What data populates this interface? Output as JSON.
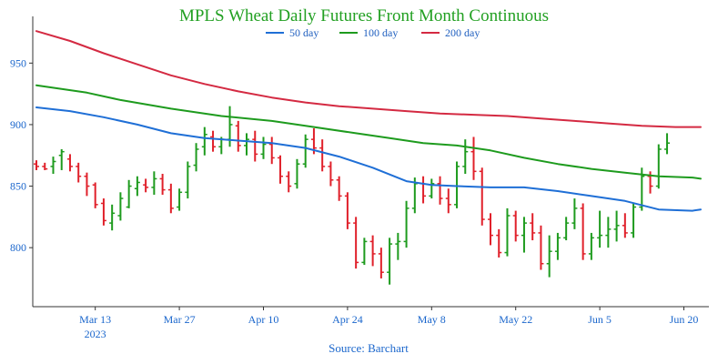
{
  "chart_data": {
    "type": "line",
    "title": "MPLS Wheat Daily Futures Front Month Continuous",
    "source": "Source: Barchart",
    "ylim": [
      755,
      985
    ],
    "y_ticks": [
      800,
      850,
      900,
      950
    ],
    "x_ticks": [
      {
        "label": "Mar 13",
        "year": "2023",
        "day": 7
      },
      {
        "label": "Mar 27",
        "day": 17
      },
      {
        "label": "Apr 10",
        "day": 27
      },
      {
        "label": "Apr 24",
        "day": 37
      },
      {
        "label": "May 8",
        "day": 47
      },
      {
        "label": "May 22",
        "day": 57
      },
      {
        "label": "Jun 5",
        "day": 67
      },
      {
        "label": "Jun 20",
        "day": 77
      }
    ],
    "legend": [
      {
        "name": "50 day",
        "color": "#1f6fd6"
      },
      {
        "name": "100 day",
        "color": "#1e9b1e"
      },
      {
        "name": "200 day",
        "color": "#d42a42"
      }
    ],
    "colors": {
      "up": "#1e9b1e",
      "down": "#e0202a",
      "axis": "#333333"
    },
    "series": [
      {
        "name": "50 day",
        "color": "#1f6fd6",
        "points": [
          [
            0,
            914
          ],
          [
            4,
            911
          ],
          [
            8,
            906
          ],
          [
            12,
            900
          ],
          [
            16,
            893
          ],
          [
            20,
            889
          ],
          [
            24,
            887
          ],
          [
            28,
            885
          ],
          [
            32,
            881
          ],
          [
            36,
            874
          ],
          [
            40,
            865
          ],
          [
            44,
            854
          ],
          [
            47,
            851
          ],
          [
            50,
            850
          ],
          [
            54,
            849
          ],
          [
            58,
            849
          ],
          [
            62,
            846
          ],
          [
            66,
            842
          ],
          [
            70,
            838
          ],
          [
            74,
            831
          ],
          [
            78,
            830
          ],
          [
            79,
            831
          ]
        ]
      },
      {
        "name": "100 day",
        "color": "#1e9b1e",
        "points": [
          [
            0,
            932
          ],
          [
            6,
            926
          ],
          [
            10,
            920
          ],
          [
            16,
            913
          ],
          [
            22,
            907
          ],
          [
            28,
            903
          ],
          [
            32,
            899
          ],
          [
            38,
            893
          ],
          [
            42,
            889
          ],
          [
            46,
            885
          ],
          [
            50,
            883
          ],
          [
            54,
            879
          ],
          [
            58,
            873
          ],
          [
            62,
            868
          ],
          [
            66,
            864
          ],
          [
            70,
            861
          ],
          [
            74,
            858
          ],
          [
            78,
            857
          ],
          [
            79,
            856
          ]
        ]
      },
      {
        "name": "200 day",
        "color": "#d42a42",
        "points": [
          [
            0,
            976
          ],
          [
            4,
            968
          ],
          [
            8,
            958
          ],
          [
            12,
            949
          ],
          [
            16,
            940
          ],
          [
            20,
            933
          ],
          [
            24,
            927
          ],
          [
            28,
            922
          ],
          [
            32,
            918
          ],
          [
            36,
            915
          ],
          [
            40,
            913
          ],
          [
            44,
            911
          ],
          [
            48,
            909
          ],
          [
            52,
            908
          ],
          [
            56,
            907
          ],
          [
            60,
            905
          ],
          [
            64,
            903
          ],
          [
            68,
            901
          ],
          [
            72,
            899
          ],
          [
            76,
            898
          ],
          [
            79,
            898
          ]
        ]
      }
    ],
    "ohlc": [
      [
        0,
        868,
        871,
        863,
        866
      ],
      [
        1,
        866,
        869,
        863,
        864
      ],
      [
        2,
        866,
        874,
        860,
        870
      ],
      [
        3,
        875,
        880,
        863,
        878
      ],
      [
        4,
        872,
        876,
        862,
        866
      ],
      [
        5,
        866,
        869,
        853,
        858
      ],
      [
        6,
        858,
        861,
        842,
        850
      ],
      [
        7,
        851,
        853,
        832,
        835
      ],
      [
        8,
        836,
        840,
        818,
        822
      ],
      [
        9,
        820,
        835,
        814,
        828
      ],
      [
        10,
        826,
        845,
        822,
        840
      ],
      [
        11,
        833,
        855,
        832,
        850
      ],
      [
        12,
        848,
        858,
        842,
        853
      ],
      [
        13,
        851,
        856,
        845,
        849
      ],
      [
        14,
        849,
        862,
        843,
        856
      ],
      [
        15,
        856,
        860,
        843,
        847
      ],
      [
        16,
        847,
        852,
        828,
        832
      ],
      [
        17,
        833,
        848,
        830,
        845
      ],
      [
        18,
        845,
        870,
        840,
        866
      ],
      [
        19,
        867,
        885,
        862,
        880
      ],
      [
        20,
        882,
        898,
        875,
        892
      ],
      [
        21,
        890,
        895,
        878,
        882
      ],
      [
        22,
        882,
        890,
        876,
        888
      ],
      [
        23,
        888,
        915,
        882,
        900
      ],
      [
        24,
        899,
        903,
        878,
        883
      ],
      [
        25,
        883,
        893,
        875,
        888
      ],
      [
        26,
        888,
        895,
        870,
        876
      ],
      [
        27,
        876,
        890,
        872,
        884
      ],
      [
        28,
        884,
        890,
        868,
        873
      ],
      [
        29,
        873,
        875,
        852,
        858
      ],
      [
        30,
        858,
        862,
        845,
        850
      ],
      [
        31,
        852,
        872,
        848,
        868
      ],
      [
        32,
        868,
        892,
        865,
        888
      ],
      [
        33,
        888,
        897,
        876,
        881
      ],
      [
        34,
        881,
        888,
        862,
        866
      ],
      [
        35,
        866,
        870,
        850,
        855
      ],
      [
        36,
        855,
        858,
        838,
        842
      ],
      [
        37,
        842,
        845,
        815,
        820
      ],
      [
        38,
        820,
        825,
        783,
        788
      ],
      [
        39,
        788,
        808,
        786,
        805
      ],
      [
        40,
        805,
        810,
        785,
        795
      ],
      [
        41,
        795,
        800,
        775,
        780
      ],
      [
        42,
        780,
        808,
        770,
        803
      ],
      [
        43,
        803,
        812,
        790,
        805
      ],
      [
        44,
        805,
        838,
        800,
        832
      ],
      [
        45,
        832,
        857,
        828,
        852
      ],
      [
        46,
        852,
        858,
        836,
        842
      ],
      [
        47,
        842,
        856,
        840,
        852
      ],
      [
        48,
        852,
        858,
        835,
        840
      ],
      [
        49,
        840,
        848,
        828,
        835
      ],
      [
        50,
        835,
        870,
        832,
        866
      ],
      [
        51,
        866,
        888,
        860,
        878
      ],
      [
        52,
        878,
        890,
        855,
        862
      ],
      [
        53,
        862,
        865,
        818,
        823
      ],
      [
        54,
        823,
        828,
        802,
        810
      ],
      [
        55,
        810,
        815,
        792,
        796
      ],
      [
        56,
        796,
        832,
        793,
        826
      ],
      [
        57,
        826,
        830,
        805,
        810
      ],
      [
        58,
        810,
        825,
        796,
        820
      ],
      [
        59,
        820,
        828,
        806,
        812
      ],
      [
        60,
        812,
        818,
        782,
        787
      ],
      [
        61,
        787,
        810,
        776,
        797
      ],
      [
        62,
        797,
        812,
        790,
        808
      ],
      [
        63,
        808,
        825,
        806,
        820
      ],
      [
        64,
        820,
        840,
        815,
        832
      ],
      [
        65,
        832,
        836,
        790,
        795
      ],
      [
        66,
        795,
        812,
        790,
        808
      ],
      [
        67,
        808,
        830,
        800,
        810
      ],
      [
        68,
        810,
        825,
        800,
        815
      ],
      [
        69,
        815,
        830,
        805,
        818
      ],
      [
        70,
        818,
        828,
        808,
        812
      ],
      [
        71,
        812,
        836,
        808,
        833
      ],
      [
        72,
        833,
        865,
        830,
        858
      ],
      [
        73,
        858,
        862,
        844,
        850
      ],
      [
        74,
        850,
        884,
        848,
        880
      ],
      [
        75,
        880,
        893,
        876,
        885
      ]
    ]
  }
}
